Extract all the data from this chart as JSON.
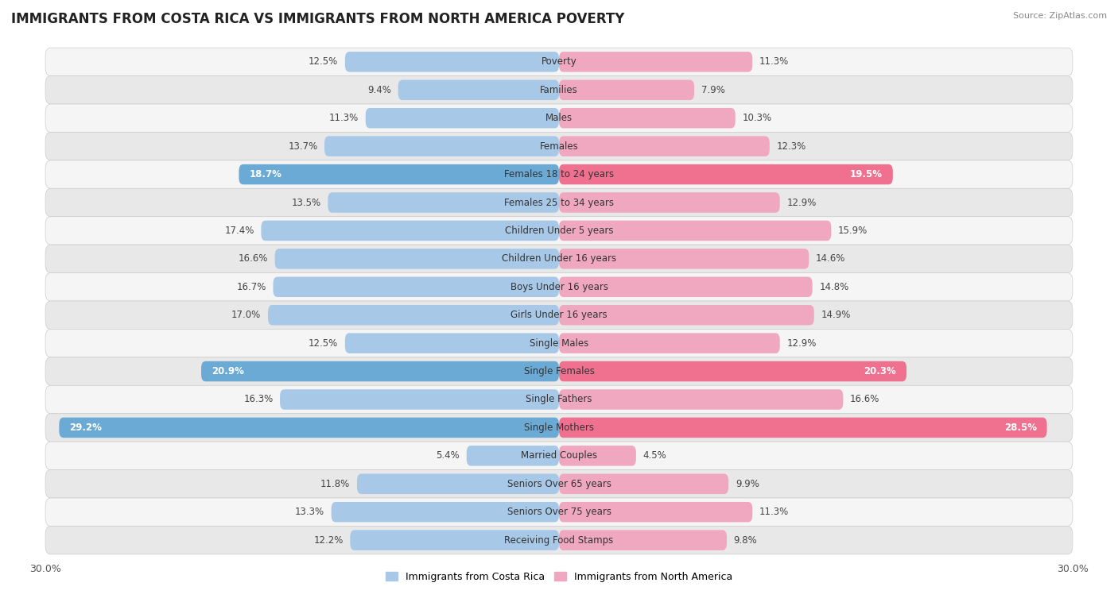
{
  "title": "IMMIGRANTS FROM COSTA RICA VS IMMIGRANTS FROM NORTH AMERICA POVERTY",
  "source": "Source: ZipAtlas.com",
  "categories": [
    "Poverty",
    "Families",
    "Males",
    "Females",
    "Females 18 to 24 years",
    "Females 25 to 34 years",
    "Children Under 5 years",
    "Children Under 16 years",
    "Boys Under 16 years",
    "Girls Under 16 years",
    "Single Males",
    "Single Females",
    "Single Fathers",
    "Single Mothers",
    "Married Couples",
    "Seniors Over 65 years",
    "Seniors Over 75 years",
    "Receiving Food Stamps"
  ],
  "costa_rica": [
    12.5,
    9.4,
    11.3,
    13.7,
    18.7,
    13.5,
    17.4,
    16.6,
    16.7,
    17.0,
    12.5,
    20.9,
    16.3,
    29.2,
    5.4,
    11.8,
    13.3,
    12.2
  ],
  "north_america": [
    11.3,
    7.9,
    10.3,
    12.3,
    19.5,
    12.9,
    15.9,
    14.6,
    14.8,
    14.9,
    12.9,
    20.3,
    16.6,
    28.5,
    4.5,
    9.9,
    11.3,
    9.8
  ],
  "costa_rica_color": "#a8c8e8",
  "north_america_color": "#f0a8c0",
  "highlight_costa_rica_color": "#6aaad4",
  "highlight_north_america_color": "#f07090",
  "highlight_rows": [
    4,
    11,
    13
  ],
  "xlim": 30.0,
  "background_color": "#ffffff",
  "row_bg_light": "#f8f8f8",
  "row_bg_dark": "#eeeeee",
  "legend_labels": [
    "Immigrants from Costa Rica",
    "Immigrants from North America"
  ],
  "label_threshold": 16.0
}
